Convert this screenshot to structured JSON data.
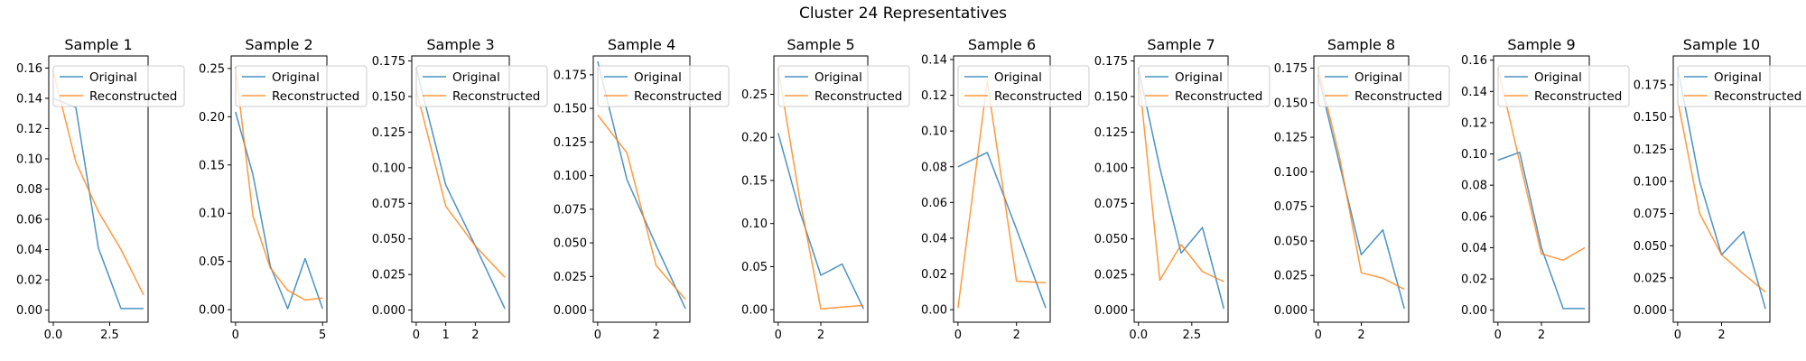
{
  "figure": {
    "suptitle": "Cluster 24 Representatives"
  },
  "chart_data": [
    {
      "type": "line",
      "title": "Sample 1",
      "xlim": [
        -0.2,
        4.2
      ],
      "ylim": [
        -0.008,
        0.168
      ],
      "xticks": [
        0.0,
        2.5
      ],
      "xtick_labels": [
        "0.0",
        "2.5"
      ],
      "yticks": [
        0.0,
        0.02,
        0.04,
        0.06,
        0.08,
        0.1,
        0.12,
        0.14,
        0.16
      ],
      "ytick_labels": [
        "0.00",
        "0.02",
        "0.04",
        "0.06",
        "0.08",
        "0.10",
        "0.12",
        "0.14",
        "0.16"
      ],
      "legend": "upper right",
      "series": [
        {
          "name": "Original",
          "color": "#1f77b4",
          "x": [
            0,
            1,
            2,
            3,
            4
          ],
          "y": [
            0.14,
            0.134,
            0.041,
            0.001,
            0.001
          ]
        },
        {
          "name": "Reconstructed",
          "color": "#ff7f0e",
          "x": [
            0,
            1,
            2,
            3,
            4
          ],
          "y": [
            0.158,
            0.098,
            0.065,
            0.04,
            0.01
          ]
        }
      ]
    },
    {
      "type": "line",
      "title": "Sample 2",
      "xlim": [
        -0.25,
        5.25
      ],
      "ylim": [
        -0.013,
        0.263
      ],
      "xticks": [
        0,
        5
      ],
      "xtick_labels": [
        "0",
        "5"
      ],
      "yticks": [
        0.0,
        0.05,
        0.1,
        0.15,
        0.2,
        0.25
      ],
      "ytick_labels": [
        "0.00",
        "0.05",
        "0.10",
        "0.15",
        "0.20",
        "0.25"
      ],
      "legend": "upper right",
      "series": [
        {
          "name": "Original",
          "color": "#1f77b4",
          "x": [
            0,
            1,
            2,
            3,
            4,
            5
          ],
          "y": [
            0.205,
            0.14,
            0.045,
            0.001,
            0.053,
            0.001
          ]
        },
        {
          "name": "Reconstructed",
          "color": "#ff7f0e",
          "x": [
            0,
            1,
            2,
            3,
            4,
            5
          ],
          "y": [
            0.252,
            0.097,
            0.043,
            0.02,
            0.01,
            0.012
          ]
        }
      ]
    },
    {
      "type": "line",
      "title": "Sample 3",
      "xlim": [
        -0.15,
        3.15
      ],
      "ylim": [
        -0.0085,
        0.1785
      ],
      "xticks": [
        0,
        1,
        2
      ],
      "xtick_labels": [
        "0",
        "1",
        "2"
      ],
      "yticks": [
        0.0,
        0.025,
        0.05,
        0.075,
        0.1,
        0.125,
        0.15,
        0.175
      ],
      "ytick_labels": [
        "0.000",
        "0.025",
        "0.050",
        "0.075",
        "0.100",
        "0.125",
        "0.150",
        "0.175"
      ],
      "legend": "upper right",
      "series": [
        {
          "name": "Original",
          "color": "#1f77b4",
          "x": [
            0,
            1,
            2,
            3
          ],
          "y": [
            0.17,
            0.088,
            0.045,
            0.001
          ]
        },
        {
          "name": "Reconstructed",
          "color": "#ff7f0e",
          "x": [
            0,
            1,
            2,
            3
          ],
          "y": [
            0.155,
            0.073,
            0.045,
            0.023
          ]
        }
      ]
    },
    {
      "type": "line",
      "title": "Sample 4",
      "xlim": [
        -0.15,
        3.15
      ],
      "ylim": [
        -0.009,
        0.189
      ],
      "xticks": [
        0,
        2
      ],
      "xtick_labels": [
        "0",
        "2"
      ],
      "yticks": [
        0.0,
        0.025,
        0.05,
        0.075,
        0.1,
        0.125,
        0.15,
        0.175
      ],
      "ytick_labels": [
        "0.000",
        "0.025",
        "0.050",
        "0.075",
        "0.100",
        "0.125",
        "0.150",
        "0.175"
      ],
      "legend": "upper right",
      "series": [
        {
          "name": "Original",
          "color": "#1f77b4",
          "x": [
            0,
            1,
            2,
            3
          ],
          "y": [
            0.185,
            0.097,
            0.048,
            0.001
          ]
        },
        {
          "name": "Reconstructed",
          "color": "#ff7f0e",
          "x": [
            0,
            1,
            2,
            3
          ],
          "y": [
            0.145,
            0.117,
            0.033,
            0.008
          ]
        }
      ]
    },
    {
      "type": "line",
      "title": "Sample 5",
      "xlim": [
        -0.2,
        4.2
      ],
      "ylim": [
        -0.0145,
        0.2945
      ],
      "xticks": [
        0,
        2
      ],
      "xtick_labels": [
        "0",
        "2"
      ],
      "yticks": [
        0.0,
        0.05,
        0.1,
        0.15,
        0.2,
        0.25
      ],
      "ytick_labels": [
        "0.00",
        "0.05",
        "0.10",
        "0.15",
        "0.20",
        "0.25"
      ],
      "legend": "upper right",
      "series": [
        {
          "name": "Original",
          "color": "#1f77b4",
          "x": [
            0,
            1,
            2,
            3,
            4
          ],
          "y": [
            0.205,
            0.115,
            0.04,
            0.053,
            0.001
          ]
        },
        {
          "name": "Reconstructed",
          "color": "#ff7f0e",
          "x": [
            0,
            1,
            2,
            3,
            4
          ],
          "y": [
            0.28,
            0.13,
            0.001,
            0.003,
            0.005
          ]
        }
      ]
    },
    {
      "type": "line",
      "title": "Sample 6",
      "xlim": [
        -0.15,
        3.15
      ],
      "ylim": [
        -0.007,
        0.142
      ],
      "xticks": [
        0,
        2
      ],
      "xtick_labels": [
        "0",
        "2"
      ],
      "yticks": [
        0.0,
        0.02,
        0.04,
        0.06,
        0.08,
        0.1,
        0.12,
        0.14
      ],
      "ytick_labels": [
        "0.00",
        "0.02",
        "0.04",
        "0.06",
        "0.08",
        "0.10",
        "0.12",
        "0.14"
      ],
      "legend": "upper right",
      "series": [
        {
          "name": "Original",
          "color": "#1f77b4",
          "x": [
            0,
            1,
            2,
            3
          ],
          "y": [
            0.08,
            0.088,
            0.045,
            0.001
          ]
        },
        {
          "name": "Reconstructed",
          "color": "#ff7f0e",
          "x": [
            0,
            1,
            2,
            3
          ],
          "y": [
            0.001,
            0.128,
            0.016,
            0.015
          ]
        }
      ]
    },
    {
      "type": "line",
      "title": "Sample 7",
      "xlim": [
        -0.2,
        4.2
      ],
      "ylim": [
        -0.0085,
        0.1785
      ],
      "xticks": [
        0.0,
        2.5
      ],
      "xtick_labels": [
        "0.0",
        "2.5"
      ],
      "yticks": [
        0.0,
        0.025,
        0.05,
        0.075,
        0.1,
        0.125,
        0.15,
        0.175
      ],
      "ytick_labels": [
        "0.000",
        "0.025",
        "0.050",
        "0.075",
        "0.100",
        "0.125",
        "0.150",
        "0.175"
      ],
      "legend": "upper right",
      "series": [
        {
          "name": "Original",
          "color": "#1f77b4",
          "x": [
            0,
            1,
            2,
            3,
            4
          ],
          "y": [
            0.17,
            0.1,
            0.04,
            0.058,
            0.001
          ]
        },
        {
          "name": "Reconstructed",
          "color": "#ff7f0e",
          "x": [
            0,
            1,
            2,
            3,
            4
          ],
          "y": [
            0.168,
            0.021,
            0.046,
            0.027,
            0.02
          ]
        }
      ]
    },
    {
      "type": "line",
      "title": "Sample 8",
      "xlim": [
        -0.2,
        4.2
      ],
      "ylim": [
        -0.0088,
        0.1838
      ],
      "xticks": [
        0,
        2
      ],
      "xtick_labels": [
        "0",
        "2"
      ],
      "yticks": [
        0.0,
        0.025,
        0.05,
        0.075,
        0.1,
        0.125,
        0.15,
        0.175
      ],
      "ytick_labels": [
        "0.000",
        "0.025",
        "0.050",
        "0.075",
        "0.100",
        "0.125",
        "0.150",
        "0.175"
      ],
      "legend": "upper right",
      "series": [
        {
          "name": "Original",
          "color": "#1f77b4",
          "x": [
            0,
            1,
            2,
            3,
            4
          ],
          "y": [
            0.17,
            0.105,
            0.04,
            0.058,
            0.001
          ]
        },
        {
          "name": "Reconstructed",
          "color": "#ff7f0e",
          "x": [
            0,
            1,
            2,
            3,
            4
          ],
          "y": [
            0.175,
            0.11,
            0.027,
            0.023,
            0.015
          ]
        }
      ]
    },
    {
      "type": "line",
      "title": "Sample 9",
      "xlim": [
        -0.2,
        4.2
      ],
      "ylim": [
        -0.0077,
        0.1627
      ],
      "xticks": [
        0,
        2
      ],
      "xtick_labels": [
        "0",
        "2"
      ],
      "yticks": [
        0.0,
        0.02,
        0.04,
        0.06,
        0.08,
        0.1,
        0.12,
        0.14,
        0.16
      ],
      "ytick_labels": [
        "0.00",
        "0.02",
        "0.04",
        "0.06",
        "0.08",
        "0.10",
        "0.12",
        "0.14",
        "0.16"
      ],
      "legend": "upper right",
      "series": [
        {
          "name": "Original",
          "color": "#1f77b4",
          "x": [
            0,
            1,
            2,
            3,
            4
          ],
          "y": [
            0.096,
            0.101,
            0.04,
            0.001,
            0.001
          ]
        },
        {
          "name": "Reconstructed",
          "color": "#ff7f0e",
          "x": [
            0,
            1,
            2,
            3,
            4
          ],
          "y": [
            0.155,
            0.095,
            0.036,
            0.032,
            0.04
          ]
        }
      ]
    },
    {
      "type": "line",
      "title": "Sample 10",
      "xlim": [
        -0.2,
        4.2
      ],
      "ylim": [
        -0.0094,
        0.1974
      ],
      "xticks": [
        0,
        2
      ],
      "xtick_labels": [
        "0",
        "2"
      ],
      "yticks": [
        0.0,
        0.025,
        0.05,
        0.075,
        0.1,
        0.125,
        0.15,
        0.175
      ],
      "ytick_labels": [
        "0.000",
        "0.025",
        "0.050",
        "0.075",
        "0.100",
        "0.125",
        "0.150",
        "0.175"
      ],
      "legend": "upper right",
      "series": [
        {
          "name": "Original",
          "color": "#1f77b4",
          "x": [
            0,
            1,
            2,
            3,
            4
          ],
          "y": [
            0.188,
            0.1,
            0.043,
            0.061,
            0.001
          ]
        },
        {
          "name": "Reconstructed",
          "color": "#ff7f0e",
          "x": [
            0,
            1,
            2,
            3,
            4
          ],
          "y": [
            0.163,
            0.075,
            0.043,
            0.028,
            0.014
          ]
        }
      ]
    }
  ]
}
